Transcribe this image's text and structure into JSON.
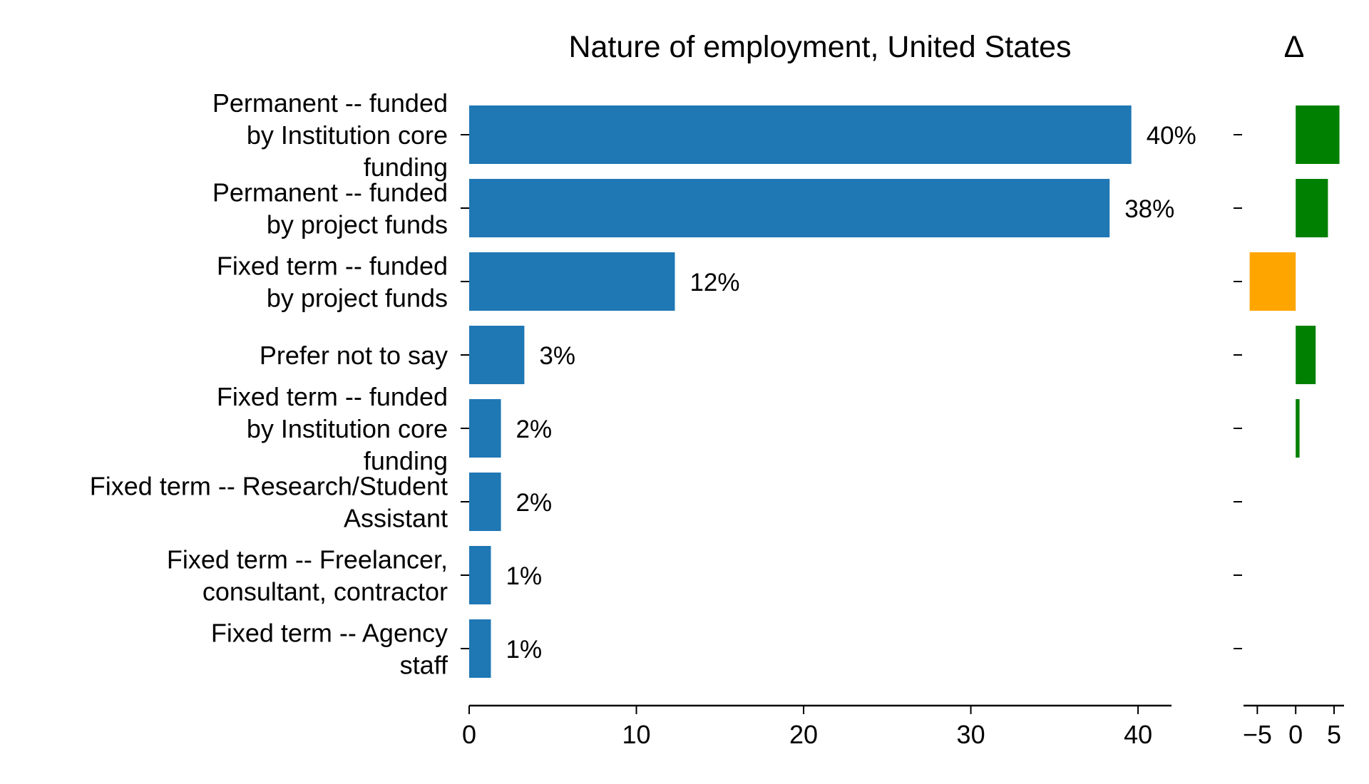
{
  "chart_data": [
    {
      "type": "bar",
      "orientation": "horizontal",
      "title": "Nature of employment, United States",
      "categories": [
        "Permanent -- funded by Institution core funding",
        "Permanent -- funded by project funds",
        "Fixed term -- funded by project funds",
        "Prefer not to say",
        "Fixed term -- funded by Institution core funding",
        "Fixed term -- Research/Student Assistant",
        "Fixed term -- Freelancer, consultant, contractor",
        "Fixed term -- Agency staff"
      ],
      "category_lines": [
        [
          "Permanent -- funded",
          "by Institution core",
          "funding"
        ],
        [
          "Permanent -- funded",
          "by project funds"
        ],
        [
          "Fixed term -- funded",
          "by project funds"
        ],
        [
          "Prefer not to say"
        ],
        [
          "Fixed term -- funded",
          "by Institution core",
          "funding"
        ],
        [
          "Fixed term -- Research/Student",
          "Assistant"
        ],
        [
          "Fixed term -- Freelancer,",
          "consultant, contractor"
        ],
        [
          "Fixed term -- Agency",
          "staff"
        ]
      ],
      "values": [
        39.6,
        38.3,
        12.3,
        3.3,
        1.9,
        1.9,
        1.3,
        1.3
      ],
      "data_labels": [
        "40%",
        "38%",
        "12%",
        "3%",
        "2%",
        "2%",
        "1%",
        "1%"
      ],
      "xlim": [
        0,
        42
      ],
      "xticks": [
        0,
        10,
        20,
        30,
        40
      ],
      "xtick_labels": [
        "0",
        "10",
        "20",
        "30",
        "40"
      ],
      "bar_color": "#1f77b4",
      "grid": false
    },
    {
      "type": "bar",
      "orientation": "horizontal",
      "title": "Δ",
      "categories": [
        "Permanent -- funded by Institution core funding",
        "Permanent -- funded by project funds",
        "Fixed term -- funded by project funds",
        "Prefer not to say",
        "Fixed term -- funded by Institution core funding",
        "Fixed term -- Research/Student Assistant",
        "Fixed term -- Freelancer, consultant, contractor",
        "Fixed term -- Agency staff"
      ],
      "values": [
        5.7,
        4.2,
        -6.0,
        2.6,
        0.5,
        0,
        0,
        0
      ],
      "xlim": [
        -6.8,
        6.3
      ],
      "xticks": [
        -5,
        0,
        5
      ],
      "xtick_labels": [
        "−5",
        "0",
        "5"
      ],
      "positive_color": "#008000",
      "negative_color": "#ffa500",
      "grid": false
    }
  ]
}
